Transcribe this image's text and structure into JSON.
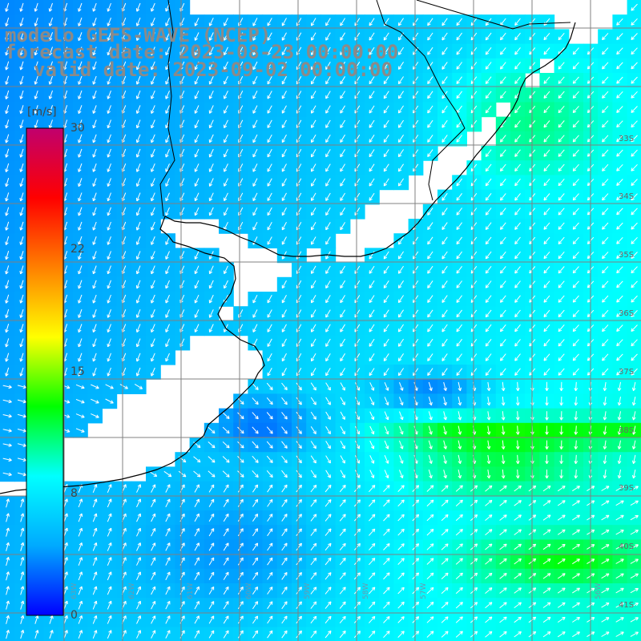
{
  "title": {
    "line1": "modelo GEFS-WAVE (NCEP)",
    "line2": "forecast date: 2023-08-23 00:00:00",
    "line3": "valid date: 2023-09-02 00:00:00"
  },
  "colorbar": {
    "unit": "[m/s]",
    "ticks": [
      "30",
      "22",
      "15",
      "8",
      "0"
    ],
    "colors": [
      "#0000ff",
      "#00aaff",
      "#00ffff",
      "#00ff00",
      "#ffff00",
      "#ff8000",
      "#ff0000",
      "#c0006e"
    ]
  },
  "lat_labels": [
    "33S",
    "34S",
    "35S",
    "36S",
    "37S",
    "38S",
    "39S",
    "40S",
    "41S"
  ],
  "lon_labels": [
    "63W",
    "62W",
    "61W",
    "60W",
    "59W",
    "58W",
    "57W",
    "56W"
  ],
  "land_color": "#ffffff",
  "grid_color": "#808080",
  "arrow_color": "#ffffff"
}
